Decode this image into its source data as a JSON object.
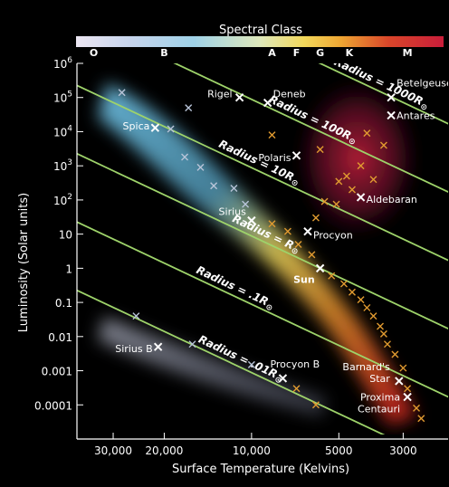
{
  "chart_data": {
    "type": "scatter",
    "title": "Spectral Class",
    "xlabel": "Surface Temperature (Kelvins)",
    "ylabel": "Luminosity (Solar units)",
    "x_scale": "log-reversed",
    "y_scale": "log",
    "xlim": [
      40000,
      2100
    ],
    "ylim": [
      1e-05,
      1000000
    ],
    "grid": false,
    "spectral_classes": [
      {
        "label": "O",
        "temperature": 35000
      },
      {
        "label": "B",
        "temperature": 20000
      },
      {
        "label": "A",
        "temperature": 8500
      },
      {
        "label": "F",
        "temperature": 7000
      },
      {
        "label": "G",
        "temperature": 5800
      },
      {
        "label": "K",
        "temperature": 4600
      },
      {
        "label": "M",
        "temperature": 2900
      }
    ],
    "x_ticks": [
      {
        "value": 30000,
        "label": "30,000"
      },
      {
        "value": 20000,
        "label": "20,000"
      },
      {
        "value": 10000,
        "label": "10,000"
      },
      {
        "value": 5000,
        "label": "5000"
      },
      {
        "value": 3000,
        "label": "3000"
      }
    ],
    "y_ticks": [
      {
        "value": 1000000,
        "base": "10",
        "exp": "6"
      },
      {
        "value": 100000,
        "base": "10",
        "exp": "5"
      },
      {
        "value": 10000,
        "base": "10",
        "exp": "4"
      },
      {
        "value": 1000,
        "base": "10",
        "exp": "3"
      },
      {
        "value": 100,
        "base": "10",
        "exp": "2"
      },
      {
        "value": 10,
        "base": "10",
        "exp": ""
      },
      {
        "value": 1,
        "base": "1",
        "exp": ""
      },
      {
        "value": 0.1,
        "base": "0.1",
        "exp": ""
      },
      {
        "value": 0.01,
        "base": "0.01",
        "exp": ""
      },
      {
        "value": 0.001,
        "base": "0.001",
        "exp": ""
      },
      {
        "value": 0.0001,
        "base": "0.0001",
        "exp": ""
      }
    ],
    "radius_lines": [
      {
        "label": "Radius = 1000R",
        "radius": 1000
      },
      {
        "label": "Radius = 100R",
        "radius": 100
      },
      {
        "label": "Radius = 10R",
        "radius": 10
      },
      {
        "label": "Radius = R",
        "radius": 1
      },
      {
        "label": "Radius = .1R",
        "radius": 0.1
      },
      {
        "label": "Radius = .01R",
        "radius": 0.01
      }
    ],
    "labeled_stars": [
      {
        "name": "Betelgeuse",
        "temperature": 3300,
        "luminosity": 100000
      },
      {
        "name": "Antares",
        "temperature": 3300,
        "luminosity": 30000
      },
      {
        "name": "Rigel",
        "temperature": 11000,
        "luminosity": 100000
      },
      {
        "name": "Deneb",
        "temperature": 8800,
        "luminosity": 70000
      },
      {
        "name": "Spica",
        "temperature": 21500,
        "luminosity": 13000
      },
      {
        "name": "Polaris",
        "temperature": 7000,
        "luminosity": 2000
      },
      {
        "name": "Aldebaran",
        "temperature": 4200,
        "luminosity": 120
      },
      {
        "name": "Sirius",
        "temperature": 10000,
        "luminosity": 25
      },
      {
        "name": "Procyon",
        "temperature": 6400,
        "luminosity": 12
      },
      {
        "name": "Sun",
        "temperature": 5800,
        "luminosity": 1
      },
      {
        "name": "Sirius B",
        "temperature": 21000,
        "luminosity": 0.005
      },
      {
        "name": "Procyon B",
        "temperature": 7800,
        "luminosity": 0.0006
      },
      {
        "name": "Barnard's Star",
        "temperature": 3100,
        "luminosity": 0.0005
      },
      {
        "name": "Proxima Centauri",
        "temperature": 2900,
        "luminosity": 0.00017
      }
    ],
    "unlabeled_stars": [
      {
        "temperature": 28000,
        "luminosity": 140000,
        "color": "#b8c4d8"
      },
      {
        "temperature": 16500,
        "luminosity": 50000,
        "color": "#b8c4d8"
      },
      {
        "temperature": 19000,
        "luminosity": 12000,
        "color": "#b8c4d8"
      },
      {
        "temperature": 17000,
        "luminosity": 1800,
        "color": "#b8c4d8"
      },
      {
        "temperature": 15000,
        "luminosity": 900,
        "color": "#b8c4d8"
      },
      {
        "temperature": 13500,
        "luminosity": 260,
        "color": "#b8c4d8"
      },
      {
        "temperature": 11500,
        "luminosity": 220,
        "color": "#b8c4d8"
      },
      {
        "temperature": 10500,
        "luminosity": 75,
        "color": "#b8c4d8"
      },
      {
        "temperature": 8500,
        "luminosity": 8000,
        "color": "#e09a30"
      },
      {
        "temperature": 5800,
        "luminosity": 3000,
        "color": "#e09a30"
      },
      {
        "temperature": 4000,
        "luminosity": 9000,
        "color": "#e09a30"
      },
      {
        "temperature": 3500,
        "luminosity": 4000,
        "color": "#e09a30"
      },
      {
        "temperature": 4200,
        "luminosity": 1000,
        "color": "#e09a30"
      },
      {
        "temperature": 4700,
        "luminosity": 500,
        "color": "#e09a30"
      },
      {
        "temperature": 3800,
        "luminosity": 400,
        "color": "#e09a30"
      },
      {
        "temperature": 5000,
        "luminosity": 350,
        "color": "#e09a30"
      },
      {
        "temperature": 4500,
        "luminosity": 200,
        "color": "#e09a30"
      },
      {
        "temperature": 5600,
        "luminosity": 90,
        "color": "#e09a30"
      },
      {
        "temperature": 5100,
        "luminosity": 75,
        "color": "#e09a30"
      },
      {
        "temperature": 6000,
        "luminosity": 30,
        "color": "#e09a30"
      },
      {
        "temperature": 8500,
        "luminosity": 20,
        "color": "#e09a30"
      },
      {
        "temperature": 7500,
        "luminosity": 12,
        "color": "#e09a30"
      },
      {
        "temperature": 6900,
        "luminosity": 5,
        "color": "#e09a30"
      },
      {
        "temperature": 6200,
        "luminosity": 2.5,
        "color": "#e09a30"
      },
      {
        "temperature": 5300,
        "luminosity": 0.6,
        "color": "#e09a30"
      },
      {
        "temperature": 4800,
        "luminosity": 0.35,
        "color": "#e09a30"
      },
      {
        "temperature": 4500,
        "luminosity": 0.2,
        "color": "#e09a30"
      },
      {
        "temperature": 4200,
        "luminosity": 0.12,
        "color": "#e09a30"
      },
      {
        "temperature": 4000,
        "luminosity": 0.07,
        "color": "#e09a30"
      },
      {
        "temperature": 3800,
        "luminosity": 0.04,
        "color": "#e09a30"
      },
      {
        "temperature": 3600,
        "luminosity": 0.02,
        "color": "#e09a30"
      },
      {
        "temperature": 3500,
        "luminosity": 0.012,
        "color": "#e09a30"
      },
      {
        "temperature": 3400,
        "luminosity": 0.006,
        "color": "#e09a30"
      },
      {
        "temperature": 3200,
        "luminosity": 0.003,
        "color": "#e09a30"
      },
      {
        "temperature": 3000,
        "luminosity": 0.0012,
        "color": "#e09a30"
      },
      {
        "temperature": 2900,
        "luminosity": 0.0003,
        "color": "#e09a30"
      },
      {
        "temperature": 2700,
        "luminosity": 8e-05,
        "color": "#e09a30"
      },
      {
        "temperature": 2600,
        "luminosity": 4e-05,
        "color": "#e09a30"
      },
      {
        "temperature": 25000,
        "luminosity": 0.04,
        "color": "#b8c4d8"
      },
      {
        "temperature": 16000,
        "luminosity": 0.006,
        "color": "#b8c4d8"
      },
      {
        "temperature": 10000,
        "luminosity": 0.0015,
        "color": "#b8c4d8"
      },
      {
        "temperature": 7000,
        "luminosity": 0.0003,
        "color": "#e09a30"
      },
      {
        "temperature": 6000,
        "luminosity": 0.0001,
        "color": "#e09a30"
      }
    ]
  }
}
